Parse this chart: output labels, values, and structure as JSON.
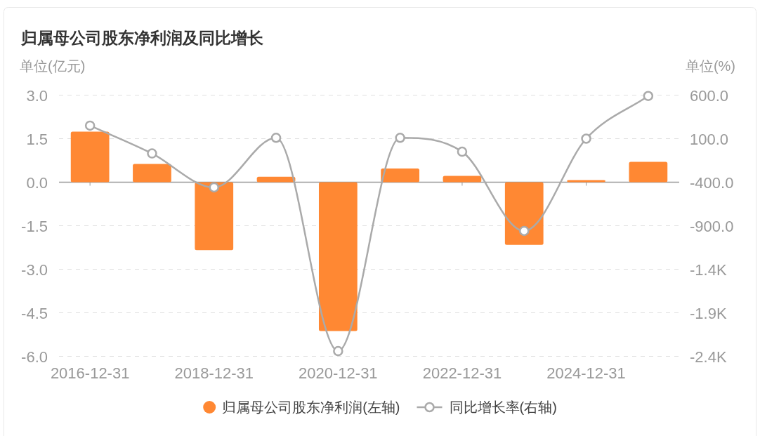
{
  "chart_data": {
    "type": "bar",
    "title": "归属母公司股东净利润及同比增长",
    "ylabel": "单位(亿元)",
    "y2label": "单位(%)",
    "categories": [
      "2016-12-31",
      null,
      "2018-12-31",
      null,
      "2020-12-31",
      null,
      "2022-12-31",
      null,
      "2024-12-31",
      null
    ],
    "series": [
      {
        "name": "归属母公司股东净利润(左轴)",
        "color": "#ff8833",
        "values": [
          1.74,
          0.63,
          -2.34,
          0.19,
          -5.13,
          0.47,
          0.22,
          -2.16,
          0.07,
          0.7
        ]
      },
      {
        "name": "同比增长率(右轴)",
        "type": "line",
        "axis": "y2",
        "color": "#aaaaaa",
        "marker": "circle",
        "values": [
          250,
          -70,
          -460,
          110,
          -2340,
          110,
          -50,
          -960,
          100,
          590
        ]
      }
    ],
    "ylim": [
      -6,
      3
    ],
    "yticks": [
      {
        "value": -6,
        "label": "-6.0"
      },
      {
        "value": -4.5,
        "label": "-4.5"
      },
      {
        "value": -3,
        "label": "-3.0"
      },
      {
        "value": -1.5,
        "label": "-1.5"
      },
      {
        "value": 0,
        "label": "0.0"
      },
      {
        "value": 1.5,
        "label": "1.5"
      },
      {
        "value": 3,
        "label": "3.0"
      }
    ],
    "y2lim": [
      -2400,
      600
    ],
    "y2ticks": [
      {
        "value": -2400,
        "label": "-2.4K"
      },
      {
        "value": -1900,
        "label": "-1.9K"
      },
      {
        "value": -1400,
        "label": "-1.4K"
      },
      {
        "value": -900,
        "label": "-900.0"
      },
      {
        "value": -400,
        "label": "-400.0"
      },
      {
        "value": 100,
        "label": "100.0"
      },
      {
        "value": 600,
        "label": "600.0"
      }
    ],
    "grid": "y",
    "legend": "bottom"
  }
}
